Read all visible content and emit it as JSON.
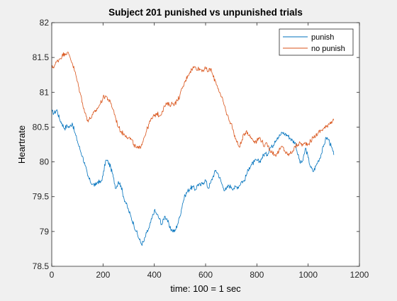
{
  "chart_data": {
    "type": "line",
    "title": "Subject 201 punished vs unpunished trials",
    "xlabel": "time: 100 = 1 sec",
    "ylabel": "Heartrate",
    "xlim": [
      0,
      1200
    ],
    "ylim": [
      78.5,
      82
    ],
    "xticks": [
      0,
      200,
      400,
      600,
      800,
      1000,
      1200
    ],
    "xtick_labels": [
      "0",
      "200",
      "400",
      "600",
      "800",
      "1000",
      "1200"
    ],
    "yticks": [
      78.5,
      79,
      79.5,
      80,
      80.5,
      81,
      81.5,
      82
    ],
    "ytick_labels": [
      "78.5",
      "79",
      "79.5",
      "80",
      "80.5",
      "81",
      "81.5",
      "82"
    ],
    "grid": false,
    "legend_position": "top-right",
    "series": [
      {
        "name": "punish",
        "color": "#0072BD",
        "points": [
          [
            0,
            80.72
          ],
          [
            10,
            80.7
          ],
          [
            20,
            80.75
          ],
          [
            30,
            80.62
          ],
          [
            40,
            80.55
          ],
          [
            50,
            80.48
          ],
          [
            60,
            80.52
          ],
          [
            70,
            80.5
          ],
          [
            80,
            80.56
          ],
          [
            90,
            80.42
          ],
          [
            100,
            80.3
          ],
          [
            110,
            80.18
          ],
          [
            120,
            80.08
          ],
          [
            130,
            79.95
          ],
          [
            140,
            79.8
          ],
          [
            150,
            79.72
          ],
          [
            160,
            79.68
          ],
          [
            170,
            79.66
          ],
          [
            180,
            79.72
          ],
          [
            190,
            79.7
          ],
          [
            200,
            79.8
          ],
          [
            210,
            80.02
          ],
          [
            220,
            80.0
          ],
          [
            230,
            79.92
          ],
          [
            240,
            79.78
          ],
          [
            250,
            79.62
          ],
          [
            260,
            79.72
          ],
          [
            270,
            79.66
          ],
          [
            280,
            79.5
          ],
          [
            290,
            79.4
          ],
          [
            300,
            79.3
          ],
          [
            310,
            79.2
          ],
          [
            320,
            79.1
          ],
          [
            330,
            79.0
          ],
          [
            340,
            78.9
          ],
          [
            350,
            78.82
          ],
          [
            360,
            78.86
          ],
          [
            370,
            78.98
          ],
          [
            380,
            79.05
          ],
          [
            390,
            79.18
          ],
          [
            400,
            79.3
          ],
          [
            410,
            79.25
          ],
          [
            420,
            79.18
          ],
          [
            430,
            79.1
          ],
          [
            440,
            79.22
          ],
          [
            450,
            79.18
          ],
          [
            460,
            79.05
          ],
          [
            470,
            79.02
          ],
          [
            480,
            79.0
          ],
          [
            490,
            79.1
          ],
          [
            500,
            79.22
          ],
          [
            510,
            79.4
          ],
          [
            520,
            79.52
          ],
          [
            530,
            79.58
          ],
          [
            540,
            79.62
          ],
          [
            550,
            79.64
          ],
          [
            560,
            79.6
          ],
          [
            570,
            79.68
          ],
          [
            580,
            79.66
          ],
          [
            590,
            79.7
          ],
          [
            600,
            79.74
          ],
          [
            610,
            79.62
          ],
          [
            620,
            79.7
          ],
          [
            630,
            79.8
          ],
          [
            640,
            79.88
          ],
          [
            650,
            79.82
          ],
          [
            660,
            79.72
          ],
          [
            670,
            79.62
          ],
          [
            680,
            79.6
          ],
          [
            690,
            79.66
          ],
          [
            700,
            79.64
          ],
          [
            710,
            79.62
          ],
          [
            720,
            79.64
          ],
          [
            730,
            79.65
          ],
          [
            740,
            79.72
          ],
          [
            750,
            79.72
          ],
          [
            760,
            79.82
          ],
          [
            770,
            79.92
          ],
          [
            780,
            79.96
          ],
          [
            790,
            80.0
          ],
          [
            800,
            80.02
          ],
          [
            810,
            80.0
          ],
          [
            820,
            80.06
          ],
          [
            830,
            80.12
          ],
          [
            840,
            80.1
          ],
          [
            850,
            80.2
          ],
          [
            860,
            80.22
          ],
          [
            870,
            80.3
          ],
          [
            880,
            80.35
          ],
          [
            890,
            80.38
          ],
          [
            900,
            80.42
          ],
          [
            910,
            80.4
          ],
          [
            920,
            80.38
          ],
          [
            930,
            80.34
          ],
          [
            940,
            80.3
          ],
          [
            950,
            80.28
          ],
          [
            960,
            80.1
          ],
          [
            970,
            79.98
          ],
          [
            980,
            80.02
          ],
          [
            990,
            80.2
          ],
          [
            1000,
            80.06
          ],
          [
            1010,
            79.92
          ],
          [
            1020,
            79.86
          ],
          [
            1030,
            79.94
          ],
          [
            1040,
            80.02
          ],
          [
            1050,
            80.1
          ],
          [
            1060,
            80.22
          ],
          [
            1070,
            80.35
          ],
          [
            1080,
            80.32
          ],
          [
            1090,
            80.22
          ],
          [
            1100,
            80.1
          ]
        ]
      },
      {
        "name": "no punish",
        "color": "#D95319",
        "points": [
          [
            0,
            81.35
          ],
          [
            10,
            81.38
          ],
          [
            20,
            81.44
          ],
          [
            30,
            81.48
          ],
          [
            40,
            81.52
          ],
          [
            50,
            81.56
          ],
          [
            60,
            81.57
          ],
          [
            70,
            81.52
          ],
          [
            80,
            81.42
          ],
          [
            90,
            81.3
          ],
          [
            100,
            81.15
          ],
          [
            110,
            81.0
          ],
          [
            120,
            80.85
          ],
          [
            130,
            80.7
          ],
          [
            140,
            80.6
          ],
          [
            150,
            80.62
          ],
          [
            160,
            80.68
          ],
          [
            170,
            80.72
          ],
          [
            180,
            80.78
          ],
          [
            190,
            80.84
          ],
          [
            200,
            80.92
          ],
          [
            210,
            80.95
          ],
          [
            220,
            80.9
          ],
          [
            230,
            80.84
          ],
          [
            240,
            80.75
          ],
          [
            250,
            80.62
          ],
          [
            260,
            80.5
          ],
          [
            270,
            80.44
          ],
          [
            280,
            80.4
          ],
          [
            290,
            80.38
          ],
          [
            300,
            80.35
          ],
          [
            310,
            80.32
          ],
          [
            320,
            80.25
          ],
          [
            330,
            80.2
          ],
          [
            340,
            80.19
          ],
          [
            350,
            80.25
          ],
          [
            360,
            80.35
          ],
          [
            370,
            80.45
          ],
          [
            380,
            80.55
          ],
          [
            390,
            80.62
          ],
          [
            400,
            80.66
          ],
          [
            410,
            80.7
          ],
          [
            420,
            80.66
          ],
          [
            430,
            80.72
          ],
          [
            440,
            80.8
          ],
          [
            450,
            80.83
          ],
          [
            460,
            80.82
          ],
          [
            470,
            80.84
          ],
          [
            480,
            80.84
          ],
          [
            490,
            80.88
          ],
          [
            500,
            80.96
          ],
          [
            510,
            81.06
          ],
          [
            520,
            81.15
          ],
          [
            530,
            81.24
          ],
          [
            540,
            81.3
          ],
          [
            550,
            81.35
          ],
          [
            560,
            81.36
          ],
          [
            570,
            81.34
          ],
          [
            580,
            81.33
          ],
          [
            590,
            81.32
          ],
          [
            600,
            81.34
          ],
          [
            610,
            81.3
          ],
          [
            620,
            81.34
          ],
          [
            630,
            81.22
          ],
          [
            640,
            81.15
          ],
          [
            650,
            81.05
          ],
          [
            660,
            80.94
          ],
          [
            670,
            80.85
          ],
          [
            680,
            80.72
          ],
          [
            690,
            80.62
          ],
          [
            700,
            80.55
          ],
          [
            710,
            80.42
          ],
          [
            720,
            80.3
          ],
          [
            730,
            80.22
          ],
          [
            740,
            80.28
          ],
          [
            750,
            80.4
          ],
          [
            760,
            80.45
          ],
          [
            770,
            80.38
          ],
          [
            780,
            80.34
          ],
          [
            790,
            80.3
          ],
          [
            800,
            80.3
          ],
          [
            810,
            80.35
          ],
          [
            820,
            80.3
          ],
          [
            830,
            80.22
          ],
          [
            840,
            80.26
          ],
          [
            850,
            80.18
          ],
          [
            860,
            80.14
          ],
          [
            870,
            80.1
          ],
          [
            880,
            80.12
          ],
          [
            890,
            80.18
          ],
          [
            900,
            80.22
          ],
          [
            910,
            80.15
          ],
          [
            920,
            80.1
          ],
          [
            930,
            80.12
          ],
          [
            940,
            80.16
          ],
          [
            950,
            80.22
          ],
          [
            960,
            80.25
          ],
          [
            970,
            80.27
          ],
          [
            980,
            80.24
          ],
          [
            990,
            80.27
          ],
          [
            1000,
            80.26
          ],
          [
            1010,
            80.3
          ],
          [
            1020,
            80.35
          ],
          [
            1030,
            80.38
          ],
          [
            1040,
            80.42
          ],
          [
            1050,
            80.45
          ],
          [
            1060,
            80.48
          ],
          [
            1070,
            80.5
          ],
          [
            1080,
            80.55
          ],
          [
            1090,
            80.58
          ],
          [
            1100,
            80.6
          ]
        ]
      }
    ]
  }
}
